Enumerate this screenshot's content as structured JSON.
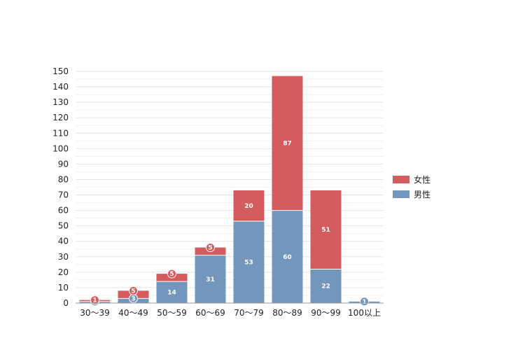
{
  "chart_data": {
    "type": "bar",
    "stacked": true,
    "categories": [
      "30〜39",
      "40〜49",
      "50〜59",
      "60〜69",
      "70〜79",
      "80〜89",
      "90〜99",
      "100以上"
    ],
    "series": [
      {
        "name": "男性",
        "color": "#7396bd",
        "values": [
          1,
          3,
          14,
          31,
          53,
          60,
          22,
          1
        ]
      },
      {
        "name": "女性",
        "color": "#d45b5e",
        "values": [
          1,
          5,
          5,
          5,
          20,
          87,
          51,
          0
        ]
      }
    ],
    "ylim": [
      0,
      150
    ],
    "yticks": [
      0,
      10,
      20,
      30,
      40,
      50,
      60,
      70,
      80,
      90,
      100,
      110,
      120,
      130,
      140,
      150
    ],
    "grid": true,
    "legend_position": "right",
    "legend_order": [
      "女性",
      "男性"
    ],
    "title": "",
    "xlabel": "",
    "ylabel": ""
  }
}
